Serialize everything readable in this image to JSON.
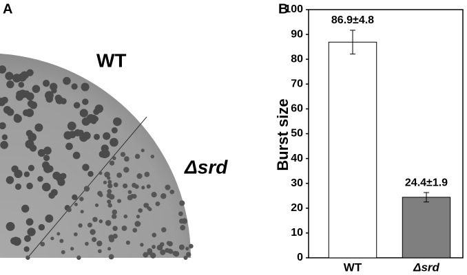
{
  "panel_a": {
    "label": "A",
    "plate_labels": [
      "WT",
      "Δsrd"
    ]
  },
  "chart_data": {
    "type": "bar",
    "panel_label": "B",
    "ylabel": "Burst size",
    "categories": [
      "WT",
      "Δsrd"
    ],
    "values": [
      86.9,
      24.4
    ],
    "errors": [
      4.8,
      1.9
    ],
    "value_labels": [
      "86.9±4.8",
      "24.4±1.9"
    ],
    "colors": [
      "#ffffff",
      "#7f7f7f"
    ],
    "ylim": [
      0,
      100
    ],
    "yticks": [
      0,
      10,
      20,
      30,
      40,
      50,
      60,
      70,
      80,
      90,
      100
    ]
  }
}
